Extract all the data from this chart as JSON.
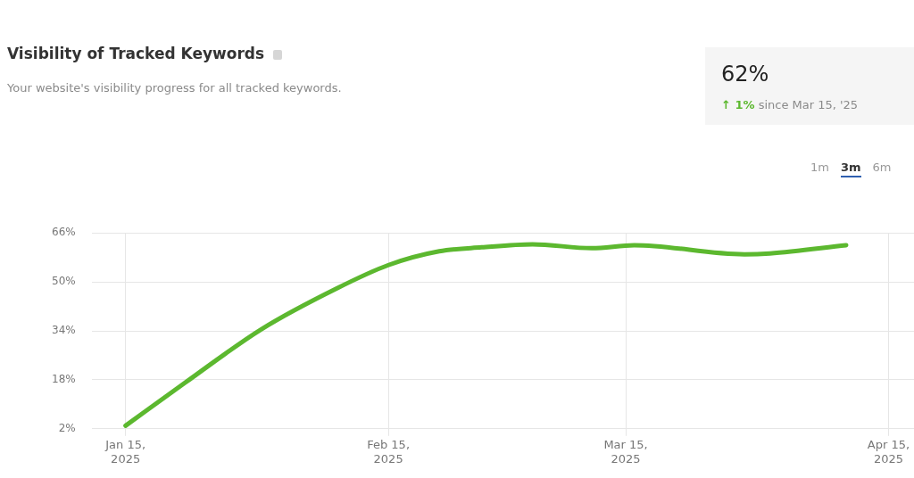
{
  "chart_data": {
    "type": "line",
    "title": "Visibility of Tracked Keywords",
    "subtitle": "Your website's visibility progress for all tracked keywords.",
    "annotations": [
      "62%",
      "↑ 1%",
      "since Mar 15, '25",
      "1m",
      "3m",
      "6m"
    ],
    "x": [
      "2025-01-15",
      "2025-01-22",
      "2025-01-31",
      "2025-02-09",
      "2025-02-15",
      "2025-02-21",
      "2025-02-26",
      "2025-03-04",
      "2025-03-11",
      "2025-03-16",
      "2025-03-29",
      "2025-04-01",
      "2025-04-10"
    ],
    "series": [
      {
        "color": "#5cb82f",
        "values": [
          3,
          17,
          34.5,
          48,
          55.5,
          60,
          61.3,
          62.3,
          61,
          62,
          59,
          59.3,
          62
        ]
      }
    ],
    "xlim": [
      "2025-01-11",
      "2025-04-18"
    ],
    "xticks": [
      {
        "value": "2025-01-15",
        "label": "Jan 15, 2025"
      },
      {
        "value": "2025-02-15",
        "label": "Feb 15, 2025"
      },
      {
        "value": "2025-03-15",
        "label": "Mar 15, 2025"
      },
      {
        "value": "2025-04-15",
        "label": "Apr 15, 2025"
      }
    ],
    "ylim": [
      2,
      66
    ],
    "yticks": [
      {
        "value": 2,
        "label": "2%"
      },
      {
        "value": 18,
        "label": "18%"
      },
      {
        "value": 34,
        "label": "34%"
      },
      {
        "value": 50,
        "label": "50%"
      },
      {
        "value": 66,
        "label": "66%"
      }
    ],
    "grid": true,
    "legend": false,
    "marker": "none",
    "line_style": "solid"
  }
}
